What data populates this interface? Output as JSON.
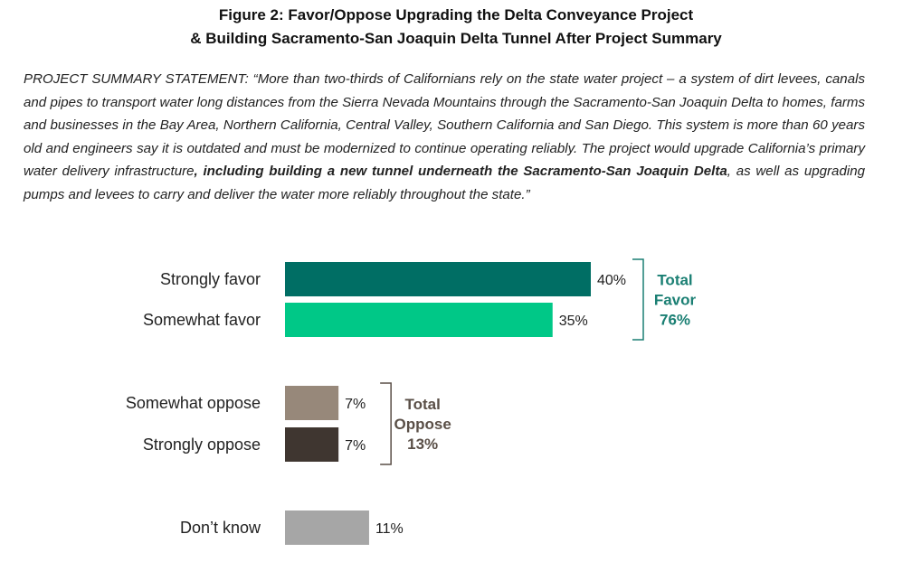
{
  "title": {
    "line1": "Figure 2: Favor/Oppose Upgrading the Delta Conveyance Project",
    "line2": "& Building Sacramento-San Joaquin Delta Tunnel After Project Summary"
  },
  "statement": {
    "part1": "PROJECT SUMMARY STATEMENT: “More than two-thirds of Californians rely on the state water project – a system of dirt levees, canals and pipes to transport water long distances from the Sierra Nevada Mountains through the Sacramento-San Joaquin Delta to homes, farms and businesses in the Bay Area, Northern California, Central Valley, Southern California and San Diego.  This system is more than 60 years old and engineers say it is outdated and must be modernized to continue operating reliably. The project would upgrade California’s primary water delivery infrastructure",
    "bold": ", including building a new tunnel underneath the Sacramento-San Joaquin Delta",
    "part2": ", as well as upgrading pumps and levees to carry and deliver the water more reliably throughout the state.”"
  },
  "chart_data": {
    "type": "bar",
    "orientation": "horizontal",
    "title": "Figure 2: Favor/Oppose Upgrading the Delta Conveyance Project & Building Sacramento-San Joaquin Delta Tunnel After Project Summary",
    "categories": [
      "Strongly favor",
      "Somewhat favor",
      "Somewhat oppose",
      "Strongly oppose",
      "Don’t know"
    ],
    "values": [
      40,
      35,
      7,
      7,
      11
    ],
    "value_labels": [
      "40%",
      "35%",
      "7%",
      "7%",
      "11%"
    ],
    "colors": [
      "#006e64",
      "#00c887",
      "#97887a",
      "#3f3630",
      "#a6a6a6"
    ],
    "xlim": [
      0,
      40
    ],
    "unit": "%",
    "groups": [
      {
        "name": "favor",
        "lines": [
          "Total",
          "Favor",
          "76%"
        ],
        "color": "#1a7f73",
        "members": [
          0,
          1
        ]
      },
      {
        "name": "oppose",
        "lines": [
          "Total",
          "Oppose",
          "13%"
        ],
        "color": "#5a4f47",
        "members": [
          2,
          3
        ]
      }
    ]
  }
}
